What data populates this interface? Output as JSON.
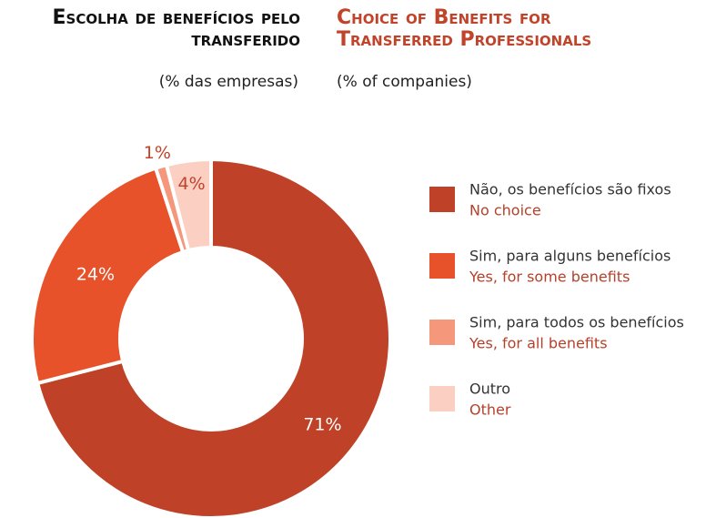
{
  "chart_data": {
    "type": "donut",
    "title": "Escolha de benefícios pelo transferido",
    "subtitle": "(% das empresas)",
    "title_en": "Choice of Benefits for Transferred Professionals",
    "subtitle_en": "(% of companies)",
    "categories": [
      "Não, os benefícios são fixos",
      "Sim, para alguns benefícios",
      "Sim, para todos os benefícios",
      "Outro"
    ],
    "categories_en": [
      "No choice",
      "Yes, for some benefits",
      "Yes, for all benefits",
      "Other"
    ],
    "values": [
      71,
      24,
      1,
      4
    ],
    "value_labels": [
      "71%",
      "24%",
      "1%",
      "4%"
    ],
    "colors": [
      "#bf4128",
      "#e8522a",
      "#f4977a",
      "#fbd0c3"
    ],
    "legend": "right"
  }
}
